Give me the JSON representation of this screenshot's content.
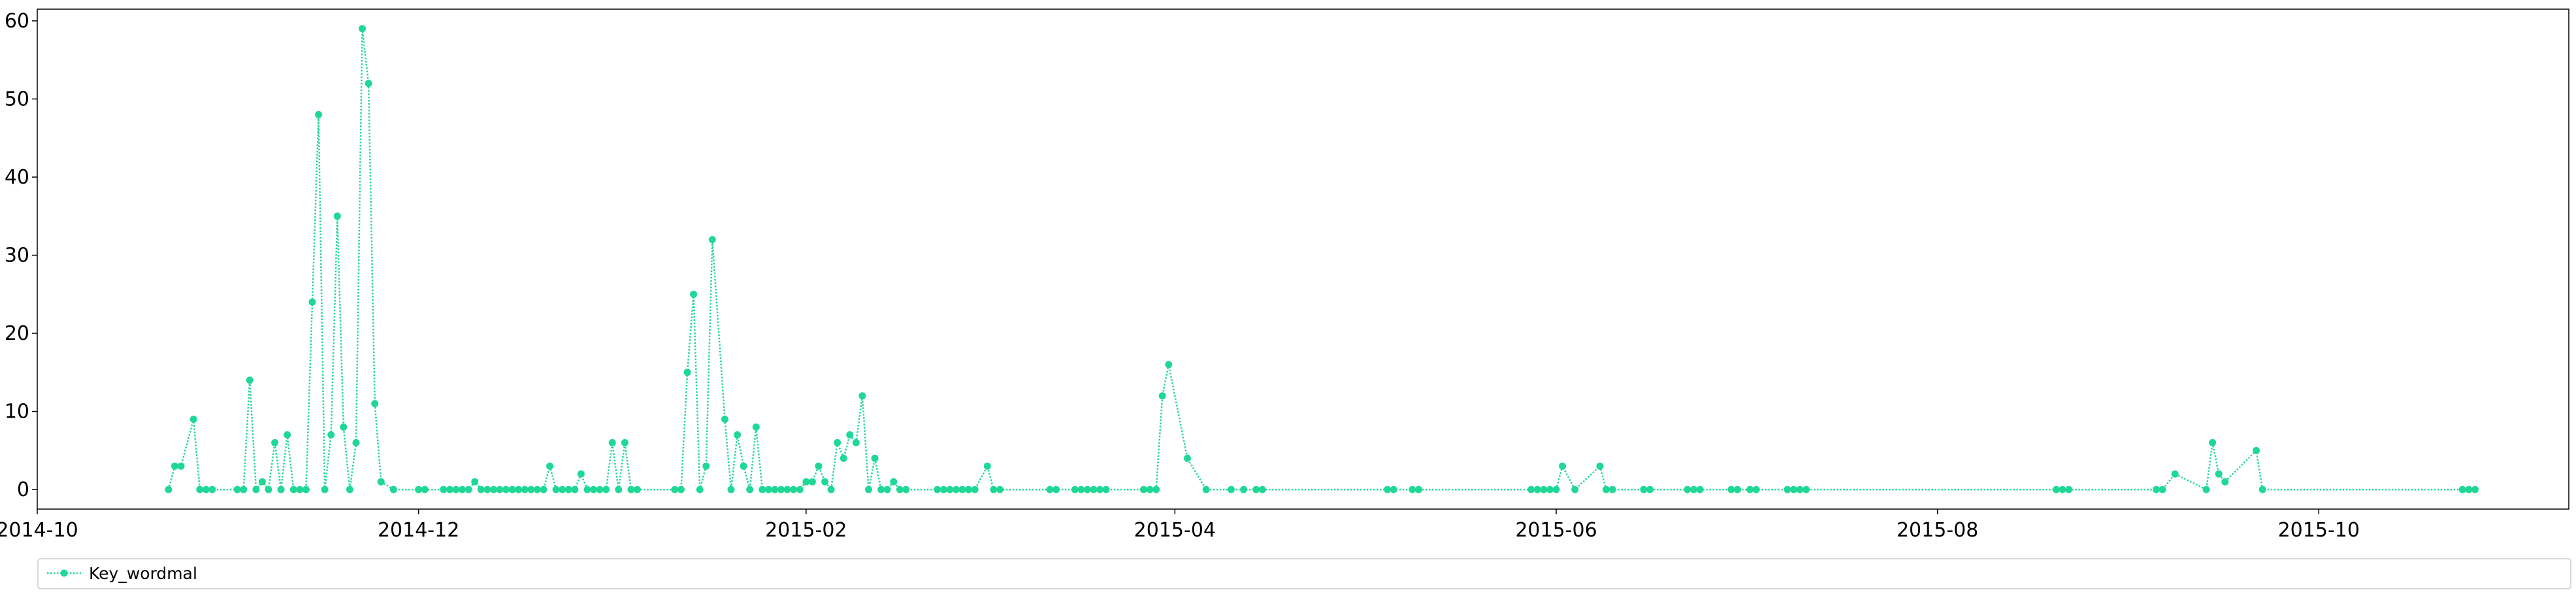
{
  "chart_data": {
    "type": "line",
    "title": "",
    "xlabel": "",
    "ylabel": "",
    "x_axis_type": "date",
    "xlim": [
      "2014-10-01",
      "2015-11-10"
    ],
    "ylim": [
      -2.5,
      61.5
    ],
    "grid": false,
    "legend_position": "bottom-left, below plot",
    "x_ticks": [
      {
        "date": "2014-10-01",
        "label": "2014-10"
      },
      {
        "date": "2014-12-01",
        "label": "2014-12"
      },
      {
        "date": "2015-02-01",
        "label": "2015-02"
      },
      {
        "date": "2015-04-01",
        "label": "2015-04"
      },
      {
        "date": "2015-06-01",
        "label": "2015-06"
      },
      {
        "date": "2015-08-01",
        "label": "2015-08"
      },
      {
        "date": "2015-10-01",
        "label": "2015-10"
      }
    ],
    "y_ticks": [
      {
        "value": 0,
        "label": "0"
      },
      {
        "value": 10,
        "label": "10"
      },
      {
        "value": 20,
        "label": "20"
      },
      {
        "value": 30,
        "label": "30"
      },
      {
        "value": 40,
        "label": "40"
      },
      {
        "value": 50,
        "label": "50"
      },
      {
        "value": 60,
        "label": "60"
      }
    ],
    "series": [
      {
        "name": "Key_wordmal",
        "color": "#1fd896",
        "line_style": "dotted",
        "marker": "circle",
        "points": [
          [
            "2014-10-22",
            0
          ],
          [
            "2014-10-23",
            3
          ],
          [
            "2014-10-24",
            3
          ],
          [
            "2014-10-26",
            9
          ],
          [
            "2014-10-27",
            0
          ],
          [
            "2014-10-28",
            0
          ],
          [
            "2014-10-29",
            0
          ],
          [
            "2014-11-02",
            0
          ],
          [
            "2014-11-03",
            0
          ],
          [
            "2014-11-04",
            14
          ],
          [
            "2014-11-05",
            0
          ],
          [
            "2014-11-06",
            1
          ],
          [
            "2014-11-07",
            0
          ],
          [
            "2014-11-08",
            6
          ],
          [
            "2014-11-09",
            0
          ],
          [
            "2014-11-10",
            7
          ],
          [
            "2014-11-11",
            0
          ],
          [
            "2014-11-12",
            0
          ],
          [
            "2014-11-13",
            0
          ],
          [
            "2014-11-14",
            24
          ],
          [
            "2014-11-15",
            48
          ],
          [
            "2014-11-16",
            0
          ],
          [
            "2014-11-17",
            7
          ],
          [
            "2014-11-18",
            35
          ],
          [
            "2014-11-19",
            8
          ],
          [
            "2014-11-20",
            0
          ],
          [
            "2014-11-21",
            6
          ],
          [
            "2014-11-22",
            59
          ],
          [
            "2014-11-23",
            52
          ],
          [
            "2014-11-24",
            11
          ],
          [
            "2014-11-25",
            1
          ],
          [
            "2014-11-27",
            0
          ],
          [
            "2014-12-01",
            0
          ],
          [
            "2014-12-02",
            0
          ],
          [
            "2014-12-05",
            0
          ],
          [
            "2014-12-06",
            0
          ],
          [
            "2014-12-07",
            0
          ],
          [
            "2014-12-08",
            0
          ],
          [
            "2014-12-09",
            0
          ],
          [
            "2014-12-10",
            1
          ],
          [
            "2014-12-11",
            0
          ],
          [
            "2014-12-12",
            0
          ],
          [
            "2014-12-13",
            0
          ],
          [
            "2014-12-14",
            0
          ],
          [
            "2014-12-15",
            0
          ],
          [
            "2014-12-16",
            0
          ],
          [
            "2014-12-17",
            0
          ],
          [
            "2014-12-18",
            0
          ],
          [
            "2014-12-19",
            0
          ],
          [
            "2014-12-20",
            0
          ],
          [
            "2014-12-21",
            0
          ],
          [
            "2014-12-22",
            3
          ],
          [
            "2014-12-23",
            0
          ],
          [
            "2014-12-24",
            0
          ],
          [
            "2014-12-25",
            0
          ],
          [
            "2014-12-26",
            0
          ],
          [
            "2014-12-27",
            2
          ],
          [
            "2014-12-28",
            0
          ],
          [
            "2014-12-29",
            0
          ],
          [
            "2014-12-30",
            0
          ],
          [
            "2014-12-31",
            0
          ],
          [
            "2015-01-01",
            6
          ],
          [
            "2015-01-02",
            0
          ],
          [
            "2015-01-03",
            6
          ],
          [
            "2015-01-04",
            0
          ],
          [
            "2015-01-05",
            0
          ],
          [
            "2015-01-11",
            0
          ],
          [
            "2015-01-12",
            0
          ],
          [
            "2015-01-13",
            15
          ],
          [
            "2015-01-14",
            25
          ],
          [
            "2015-01-15",
            0
          ],
          [
            "2015-01-16",
            3
          ],
          [
            "2015-01-17",
            32
          ],
          [
            "2015-01-19",
            9
          ],
          [
            "2015-01-20",
            0
          ],
          [
            "2015-01-21",
            7
          ],
          [
            "2015-01-22",
            3
          ],
          [
            "2015-01-23",
            0
          ],
          [
            "2015-01-24",
            8
          ],
          [
            "2015-01-25",
            0
          ],
          [
            "2015-01-26",
            0
          ],
          [
            "2015-01-27",
            0
          ],
          [
            "2015-01-28",
            0
          ],
          [
            "2015-01-29",
            0
          ],
          [
            "2015-01-30",
            0
          ],
          [
            "2015-01-31",
            0
          ],
          [
            "2015-02-01",
            1
          ],
          [
            "2015-02-02",
            1
          ],
          [
            "2015-02-03",
            3
          ],
          [
            "2015-02-04",
            1
          ],
          [
            "2015-02-05",
            0
          ],
          [
            "2015-02-06",
            6
          ],
          [
            "2015-02-07",
            4
          ],
          [
            "2015-02-08",
            7
          ],
          [
            "2015-02-09",
            6
          ],
          [
            "2015-02-10",
            12
          ],
          [
            "2015-02-11",
            0
          ],
          [
            "2015-02-12",
            4
          ],
          [
            "2015-02-13",
            0
          ],
          [
            "2015-02-14",
            0
          ],
          [
            "2015-02-15",
            1
          ],
          [
            "2015-02-16",
            0
          ],
          [
            "2015-02-17",
            0
          ],
          [
            "2015-02-22",
            0
          ],
          [
            "2015-02-23",
            0
          ],
          [
            "2015-02-24",
            0
          ],
          [
            "2015-02-25",
            0
          ],
          [
            "2015-02-26",
            0
          ],
          [
            "2015-02-27",
            0
          ],
          [
            "2015-02-28",
            0
          ],
          [
            "2015-03-02",
            3
          ],
          [
            "2015-03-03",
            0
          ],
          [
            "2015-03-04",
            0
          ],
          [
            "2015-03-12",
            0
          ],
          [
            "2015-03-13",
            0
          ],
          [
            "2015-03-16",
            0
          ],
          [
            "2015-03-17",
            0
          ],
          [
            "2015-03-18",
            0
          ],
          [
            "2015-03-19",
            0
          ],
          [
            "2015-03-20",
            0
          ],
          [
            "2015-03-21",
            0
          ],
          [
            "2015-03-27",
            0
          ],
          [
            "2015-03-28",
            0
          ],
          [
            "2015-03-29",
            0
          ],
          [
            "2015-03-30",
            12
          ],
          [
            "2015-03-31",
            16
          ],
          [
            "2015-04-03",
            4
          ],
          [
            "2015-04-06",
            0
          ],
          [
            "2015-04-10",
            0
          ],
          [
            "2015-04-12",
            0
          ],
          [
            "2015-04-14",
            0
          ],
          [
            "2015-04-15",
            0
          ],
          [
            "2015-05-05",
            0
          ],
          [
            "2015-05-06",
            0
          ],
          [
            "2015-05-09",
            0
          ],
          [
            "2015-05-10",
            0
          ],
          [
            "2015-05-28",
            0
          ],
          [
            "2015-05-29",
            0
          ],
          [
            "2015-05-30",
            0
          ],
          [
            "2015-05-31",
            0
          ],
          [
            "2015-06-01",
            0
          ],
          [
            "2015-06-02",
            3
          ],
          [
            "2015-06-04",
            0
          ],
          [
            "2015-06-08",
            3
          ],
          [
            "2015-06-09",
            0
          ],
          [
            "2015-06-10",
            0
          ],
          [
            "2015-06-15",
            0
          ],
          [
            "2015-06-16",
            0
          ],
          [
            "2015-06-22",
            0
          ],
          [
            "2015-06-23",
            0
          ],
          [
            "2015-06-24",
            0
          ],
          [
            "2015-06-29",
            0
          ],
          [
            "2015-06-30",
            0
          ],
          [
            "2015-07-02",
            0
          ],
          [
            "2015-07-03",
            0
          ],
          [
            "2015-07-08",
            0
          ],
          [
            "2015-07-09",
            0
          ],
          [
            "2015-07-10",
            0
          ],
          [
            "2015-07-11",
            0
          ],
          [
            "2015-08-20",
            0
          ],
          [
            "2015-08-21",
            0
          ],
          [
            "2015-08-22",
            0
          ],
          [
            "2015-09-05",
            0
          ],
          [
            "2015-09-06",
            0
          ],
          [
            "2015-09-08",
            2
          ],
          [
            "2015-09-13",
            0
          ],
          [
            "2015-09-14",
            6
          ],
          [
            "2015-09-15",
            2
          ],
          [
            "2015-09-16",
            1
          ],
          [
            "2015-09-21",
            5
          ],
          [
            "2015-09-22",
            0
          ],
          [
            "2015-10-24",
            0
          ],
          [
            "2015-10-25",
            0
          ],
          [
            "2015-10-26",
            0
          ]
        ]
      }
    ]
  }
}
